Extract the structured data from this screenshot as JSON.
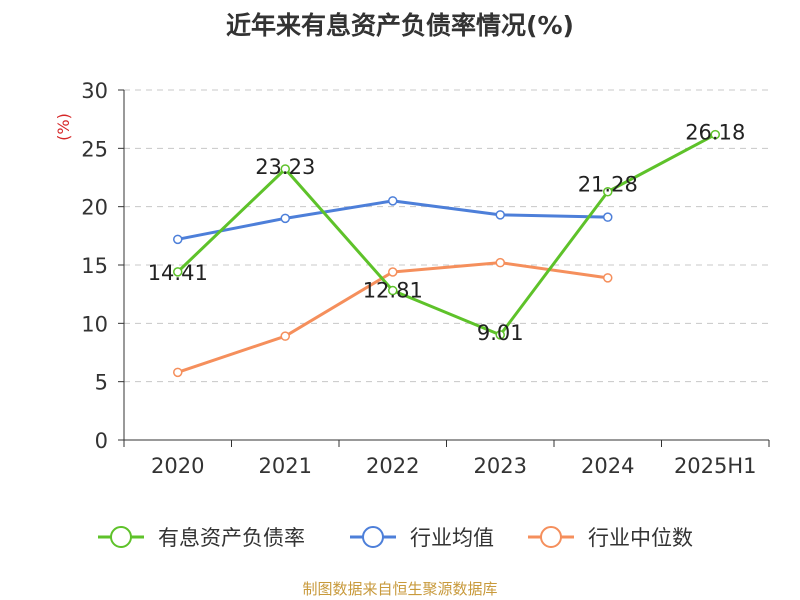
{
  "title": "近年来有息资产负债率情况(%)",
  "source": "制图数据来自恒生聚源数据库",
  "chart_data": {
    "type": "line",
    "title": "近年来有息资产负债率情况(%)",
    "ylabel": "(%)",
    "xlabel": "",
    "categories": [
      "2020",
      "2021",
      "2022",
      "2023",
      "2024",
      "2025H1"
    ],
    "ylim": [
      0,
      30
    ],
    "yticks": [
      0,
      5,
      10,
      15,
      20,
      25,
      30
    ],
    "grid": "horizontal-dashed",
    "legend_position": "bottom",
    "series": [
      {
        "name": "有息资产负债率",
        "color": "#5ec22a",
        "values": [
          14.41,
          23.23,
          12.81,
          9.01,
          21.28,
          26.18
        ],
        "labels": [
          "14.41",
          "23.23",
          "12.81",
          "9.01",
          "21.28",
          "26.18"
        ]
      },
      {
        "name": "行业均值",
        "color": "#4d7fd9",
        "values": [
          17.2,
          19.0,
          20.5,
          19.3,
          19.1,
          null
        ]
      },
      {
        "name": "行业中位数",
        "color": "#f58f5c",
        "values": [
          5.8,
          8.9,
          14.4,
          15.2,
          13.9,
          null
        ]
      }
    ]
  }
}
